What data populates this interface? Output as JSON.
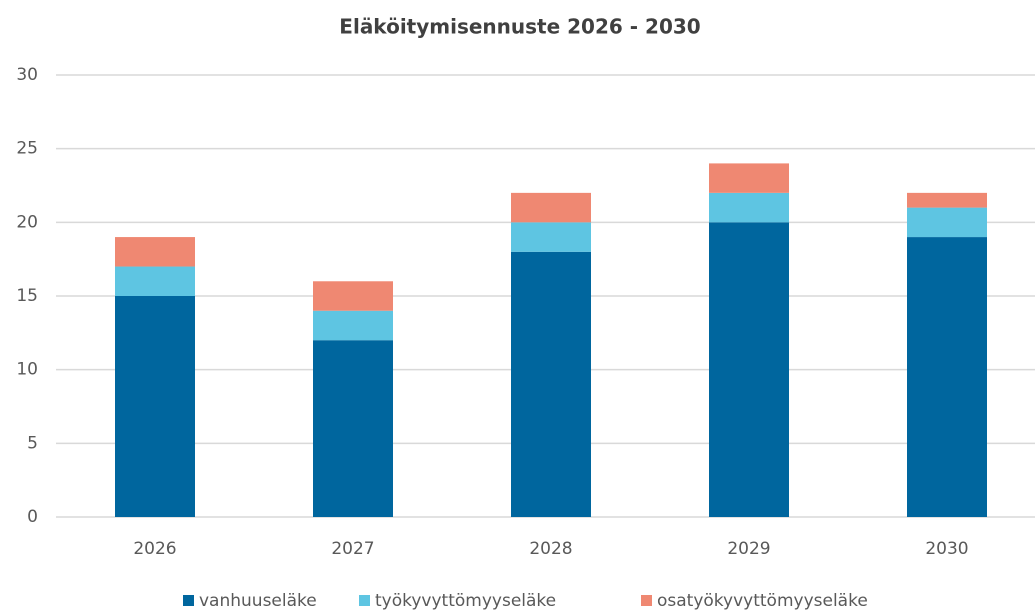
{
  "chart_data": {
    "type": "stacked_bar",
    "title": "Eläköitymisennuste 2026 - 2030",
    "categories": [
      "2026",
      "2027",
      "2028",
      "2029",
      "2030"
    ],
    "series": [
      {
        "name": "vanhuuseläke",
        "color": "#00669e",
        "values": [
          15,
          12,
          18,
          20,
          19
        ]
      },
      {
        "name": "työkyvyttömyyseläke",
        "color": "#5ec5e2",
        "values": [
          2,
          2,
          2,
          2,
          2
        ]
      },
      {
        "name": "osatyökyvyttömyyseläke",
        "color": "#ef8872",
        "values": [
          2,
          2,
          2,
          2,
          1
        ]
      }
    ],
    "ylim": [
      0,
      30
    ],
    "yticks": [
      0,
      5,
      10,
      15,
      20,
      25,
      30
    ],
    "grid": true,
    "legend": "bottom"
  }
}
